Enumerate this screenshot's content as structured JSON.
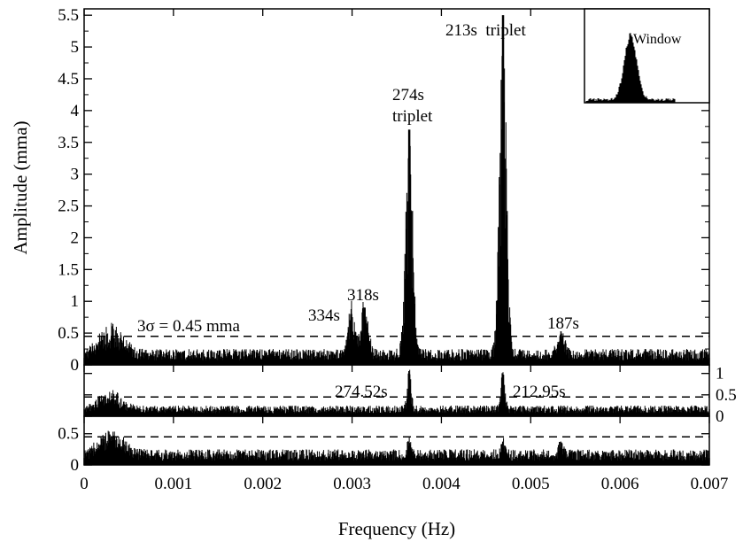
{
  "chart_data": {
    "type": "line",
    "xlabel": "Frequency (Hz)",
    "ylabel": "Amplitude (mma)",
    "xlim": [
      0,
      0.007
    ],
    "x_ticks": [
      "0",
      "0.001",
      "0.002",
      "0.003",
      "0.004",
      "0.005",
      "0.006",
      "0.007"
    ],
    "panels": [
      {
        "id": "original",
        "ylim": [
          0,
          5.6
        ],
        "y_ticks": [
          "0",
          "0.5",
          "1",
          "1.5",
          "2",
          "2.5",
          "3",
          "3.5",
          "4",
          "4.5",
          "5",
          "5.5"
        ],
        "threshold": 0.45,
        "threshold_label": "3σ = 0.45 mma",
        "noise_level": 0.2,
        "peaks": [
          {
            "x": 0.00364,
            "y": 3.7,
            "label": "274s\ntriplet"
          },
          {
            "x": 0.00469,
            "y": 5.5,
            "label": "213s  triplet"
          },
          {
            "x": 0.00299,
            "y": 0.8,
            "label": "334s"
          },
          {
            "x": 0.00314,
            "y": 0.9,
            "label": "318s"
          },
          {
            "x": 0.00534,
            "y": 0.35,
            "label": "187s"
          }
        ],
        "inset_label": "Window"
      },
      {
        "id": "prewhitened-1",
        "ylim": [
          0,
          1.2
        ],
        "y_ticks": [
          "0",
          "0.5",
          "1"
        ],
        "threshold": 0.45,
        "noise_level": 0.2,
        "peaks": [
          {
            "x": 0.00364,
            "y": 0.98,
            "label": "274.52s"
          },
          {
            "x": 0.00469,
            "y": 0.97,
            "label": "212.95s"
          }
        ]
      },
      {
        "id": "prewhitened-2",
        "ylim": [
          0,
          0.78
        ],
        "y_ticks": [
          "0",
          "0.5"
        ],
        "threshold": 0.45,
        "noise_level": 0.2,
        "peaks": [
          {
            "x": 0.00364,
            "y": 0.28
          },
          {
            "x": 0.00469,
            "y": 0.28
          },
          {
            "x": 0.00534,
            "y": 0.27
          }
        ]
      }
    ]
  }
}
